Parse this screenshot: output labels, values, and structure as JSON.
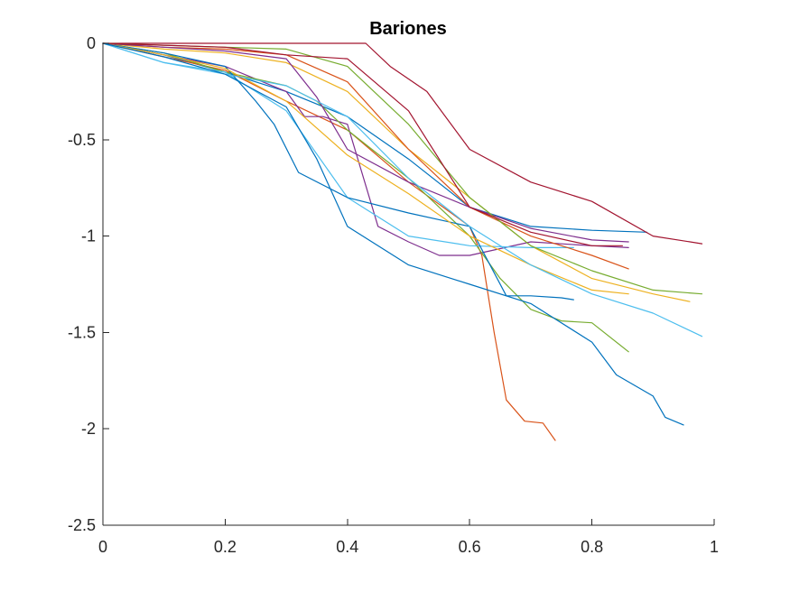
{
  "chart_data": {
    "type": "line",
    "title": "Bariones",
    "xlabel": "",
    "ylabel": "",
    "xlim": [
      0,
      1
    ],
    "ylim": [
      -2.5,
      0
    ],
    "xticks": [
      0,
      0.2,
      0.4,
      0.6,
      0.8,
      1
    ],
    "xtick_labels": [
      "0",
      "0.2",
      "0.4",
      "0.6",
      "0.8",
      "1"
    ],
    "yticks": [
      0,
      -0.5,
      -1,
      -1.5,
      -2,
      -2.5
    ],
    "ytick_labels": [
      "0",
      "-0.5",
      "-1",
      "-1.5",
      "-2",
      "-2.5"
    ],
    "grid": false,
    "legend": "none",
    "series": [
      {
        "color": "#0072BD",
        "x": [
          0,
          0.1,
          0.2,
          0.3,
          0.4,
          0.5,
          0.6,
          0.7,
          0.8,
          0.89
        ],
        "y": [
          0,
          -0.06,
          -0.15,
          -0.25,
          -0.38,
          -0.6,
          -0.85,
          -0.95,
          -0.97,
          -0.98
        ]
      },
      {
        "color": "#D95319",
        "x": [
          0,
          0.1,
          0.2,
          0.3,
          0.4,
          0.5,
          0.6,
          0.62,
          0.64,
          0.66,
          0.69,
          0.72,
          0.74
        ],
        "y": [
          0,
          -0.07,
          -0.14,
          -0.3,
          -0.45,
          -0.72,
          -0.95,
          -1.1,
          -1.5,
          -1.85,
          -1.96,
          -1.97,
          -2.06
        ]
      },
      {
        "color": "#EDB120",
        "x": [
          0,
          0.1,
          0.2,
          0.3,
          0.4,
          0.5,
          0.6,
          0.7,
          0.8,
          0.9,
          0.96
        ],
        "y": [
          0,
          -0.03,
          -0.05,
          -0.1,
          -0.25,
          -0.55,
          -0.8,
          -1.05,
          -1.22,
          -1.3,
          -1.34
        ]
      },
      {
        "color": "#7E2F8E",
        "x": [
          0,
          0.1,
          0.2,
          0.3,
          0.33,
          0.36,
          0.4,
          0.45,
          0.5,
          0.55,
          0.6,
          0.7,
          0.8,
          0.86
        ],
        "y": [
          0,
          -0.06,
          -0.12,
          -0.25,
          -0.38,
          -0.38,
          -0.42,
          -0.95,
          -1.03,
          -1.1,
          -1.1,
          -1.03,
          -1.05,
          -1.06
        ]
      },
      {
        "color": "#77AC30",
        "x": [
          0,
          0.1,
          0.2,
          0.3,
          0.35,
          0.4,
          0.5,
          0.6,
          0.65,
          0.7,
          0.75,
          0.8,
          0.86
        ],
        "y": [
          0,
          -0.05,
          -0.15,
          -0.22,
          -0.3,
          -0.45,
          -0.7,
          -1.0,
          -1.22,
          -1.38,
          -1.44,
          -1.45,
          -1.6
        ]
      },
      {
        "color": "#4DBEEE",
        "x": [
          0,
          0.1,
          0.2,
          0.3,
          0.4,
          0.5,
          0.6,
          0.7,
          0.77
        ],
        "y": [
          0,
          -0.1,
          -0.15,
          -0.35,
          -0.8,
          -1.0,
          -1.05,
          -1.06,
          -1.06
        ]
      },
      {
        "color": "#A2142F",
        "x": [
          0,
          0.2,
          0.3,
          0.43,
          0.47,
          0.53,
          0.6,
          0.7,
          0.8,
          0.9,
          0.98
        ],
        "y": [
          0,
          0,
          0,
          0,
          -0.12,
          -0.25,
          -0.55,
          -0.72,
          -0.82,
          -1.0,
          -1.04
        ]
      },
      {
        "color": "#0072BD",
        "x": [
          0,
          0.1,
          0.2,
          0.25,
          0.28,
          0.32,
          0.4,
          0.5,
          0.6,
          0.66,
          0.7,
          0.75,
          0.77
        ],
        "y": [
          0,
          -0.05,
          -0.12,
          -0.3,
          -0.42,
          -0.67,
          -0.8,
          -0.88,
          -0.95,
          -1.31,
          -1.31,
          -1.32,
          -1.33
        ]
      },
      {
        "color": "#D95319",
        "x": [
          0,
          0.1,
          0.2,
          0.3,
          0.4,
          0.5,
          0.6,
          0.7,
          0.8,
          0.86
        ],
        "y": [
          0,
          -0.02,
          -0.03,
          -0.06,
          -0.2,
          -0.55,
          -0.85,
          -1.0,
          -1.1,
          -1.17
        ]
      },
      {
        "color": "#EDB120",
        "x": [
          0,
          0.1,
          0.2,
          0.3,
          0.4,
          0.5,
          0.6,
          0.7,
          0.8,
          0.86
        ],
        "y": [
          0,
          -0.06,
          -0.13,
          -0.3,
          -0.58,
          -0.78,
          -1.0,
          -1.15,
          -1.28,
          -1.3
        ]
      },
      {
        "color": "#7E2F8E",
        "x": [
          0,
          0.1,
          0.2,
          0.3,
          0.35,
          0.4,
          0.5,
          0.6,
          0.7,
          0.8,
          0.86
        ],
        "y": [
          0,
          -0.02,
          -0.04,
          -0.08,
          -0.28,
          -0.55,
          -0.72,
          -0.85,
          -0.96,
          -1.02,
          -1.03
        ]
      },
      {
        "color": "#77AC30",
        "x": [
          0,
          0.1,
          0.2,
          0.3,
          0.4,
          0.5,
          0.6,
          0.7,
          0.8,
          0.9,
          0.98
        ],
        "y": [
          0,
          -0.01,
          -0.02,
          -0.03,
          -0.12,
          -0.42,
          -0.8,
          -1.05,
          -1.18,
          -1.28,
          -1.3
        ]
      },
      {
        "color": "#4DBEEE",
        "x": [
          0,
          0.1,
          0.2,
          0.3,
          0.4,
          0.5,
          0.6,
          0.7,
          0.8,
          0.9,
          0.98
        ],
        "y": [
          0,
          -0.1,
          -0.16,
          -0.22,
          -0.38,
          -0.7,
          -0.95,
          -1.15,
          -1.3,
          -1.4,
          -1.52
        ]
      },
      {
        "color": "#A2142F",
        "x": [
          0,
          0.1,
          0.2,
          0.3,
          0.4,
          0.5,
          0.6,
          0.7,
          0.8,
          0.85
        ],
        "y": [
          0,
          -0.01,
          -0.02,
          -0.06,
          -0.08,
          -0.35,
          -0.85,
          -0.98,
          -1.05,
          -1.05
        ]
      },
      {
        "color": "#0072BD",
        "x": [
          0,
          0.1,
          0.2,
          0.3,
          0.35,
          0.4,
          0.5,
          0.6,
          0.7,
          0.8,
          0.84,
          0.9,
          0.92,
          0.95
        ],
        "y": [
          0,
          -0.07,
          -0.16,
          -0.33,
          -0.6,
          -0.95,
          -1.15,
          -1.25,
          -1.35,
          -1.55,
          -1.72,
          -1.83,
          -1.94,
          -1.98
        ]
      }
    ]
  }
}
